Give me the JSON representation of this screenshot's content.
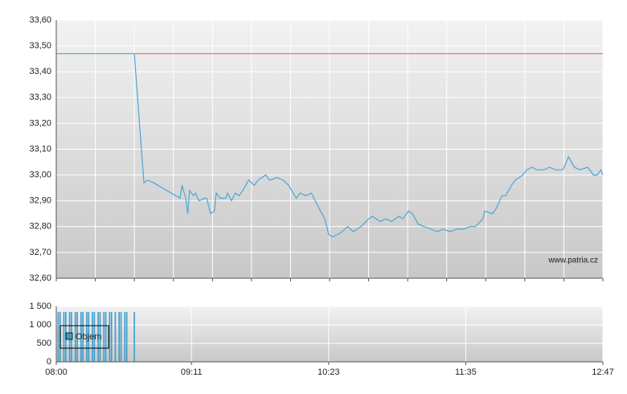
{
  "chart_data": [
    {
      "type": "line",
      "xlim": [
        480,
        767
      ],
      "ylim": [
        32.6,
        33.6
      ],
      "yticks": [
        {
          "value": 32.6,
          "label": "32,60"
        },
        {
          "value": 32.7,
          "label": "32,70"
        },
        {
          "value": 32.8,
          "label": "32,80"
        },
        {
          "value": 32.9,
          "label": "32,90"
        },
        {
          "value": 33.0,
          "label": "33,00"
        },
        {
          "value": 33.1,
          "label": "33,10"
        },
        {
          "value": 33.2,
          "label": "33,20"
        },
        {
          "value": 33.3,
          "label": "33,30"
        },
        {
          "value": 33.4,
          "label": "33,40"
        },
        {
          "value": 33.5,
          "label": "33,50"
        },
        {
          "value": 33.6,
          "label": "33,60"
        }
      ],
      "reference_line": {
        "value": 33.47,
        "color": "#e06050"
      },
      "annotation": "www.patria.cz",
      "color": "#4aa6d8",
      "x": [
        480,
        521,
        526,
        528,
        531,
        545,
        546,
        548,
        549,
        550,
        552,
        553,
        555,
        558,
        559,
        561,
        563,
        564,
        566,
        569,
        570,
        572,
        574,
        576,
        578,
        581,
        584,
        586,
        590,
        592,
        596,
        599,
        602,
        606,
        608,
        611,
        614,
        618,
        621,
        623,
        625,
        628,
        630,
        633,
        636,
        640,
        644,
        646,
        650,
        653,
        656,
        660,
        662,
        665,
        667,
        670,
        673,
        677,
        680,
        683,
        687,
        690,
        694,
        697,
        700,
        704,
        705,
        709,
        711,
        714,
        716,
        719,
        721,
        725,
        727,
        730,
        732,
        736,
        739,
        742,
        746,
        749,
        752,
        755,
        759,
        762,
        764,
        766,
        767
      ],
      "values": [
        33.47,
        33.47,
        32.97,
        32.98,
        32.97,
        32.91,
        32.96,
        32.91,
        32.85,
        32.94,
        32.92,
        32.93,
        32.9,
        32.91,
        32.91,
        32.85,
        32.86,
        32.93,
        32.91,
        32.91,
        32.93,
        32.9,
        32.93,
        32.92,
        32.94,
        32.98,
        32.96,
        32.98,
        33.0,
        32.98,
        32.99,
        32.98,
        32.96,
        32.91,
        32.93,
        32.92,
        32.93,
        32.87,
        32.83,
        32.77,
        32.76,
        32.77,
        32.78,
        32.8,
        32.78,
        32.8,
        32.83,
        32.84,
        32.82,
        32.83,
        32.82,
        32.84,
        32.83,
        32.86,
        32.85,
        32.81,
        32.8,
        32.79,
        32.78,
        32.79,
        32.78,
        32.79,
        32.79,
        32.8,
        32.8,
        32.83,
        32.86,
        32.85,
        32.87,
        32.92,
        32.92,
        32.96,
        32.98,
        33.0,
        33.02,
        33.03,
        33.02,
        33.02,
        33.03,
        33.02,
        33.02,
        33.07,
        33.03,
        33.02,
        33.03,
        33.0,
        33.0,
        33.02,
        33.0
      ]
    },
    {
      "type": "bar",
      "xlim": [
        480,
        767
      ],
      "xticks": [
        {
          "value": 480,
          "label": "08:00"
        },
        {
          "value": 551,
          "label": "09:11"
        },
        {
          "value": 623,
          "label": "10:23"
        },
        {
          "value": 695,
          "label": "11:35"
        },
        {
          "value": 767,
          "label": "12:47"
        }
      ],
      "ylim": [
        0,
        1500
      ],
      "yticks": [
        0,
        500,
        {
          "value": 1000,
          "label": "1 000"
        },
        {
          "value": 1500,
          "label": "1 500"
        }
      ],
      "x": [
        481,
        482,
        484,
        485,
        487,
        488,
        490,
        491,
        493,
        494,
        496,
        497,
        499,
        500,
        502,
        503,
        505,
        506,
        508,
        509,
        511,
        513,
        514,
        516,
        517,
        521
      ],
      "series": [
        {
          "name": "Objem",
          "color": "#3b9ccc",
          "values": [
            1350,
            1350,
            1350,
            1350,
            1350,
            1350,
            1350,
            1350,
            1350,
            1350,
            1350,
            1350,
            1350,
            1350,
            1350,
            1350,
            1350,
            1350,
            1350,
            1350,
            1350,
            1350,
            1350,
            1350,
            1350,
            1350
          ]
        }
      ]
    }
  ]
}
